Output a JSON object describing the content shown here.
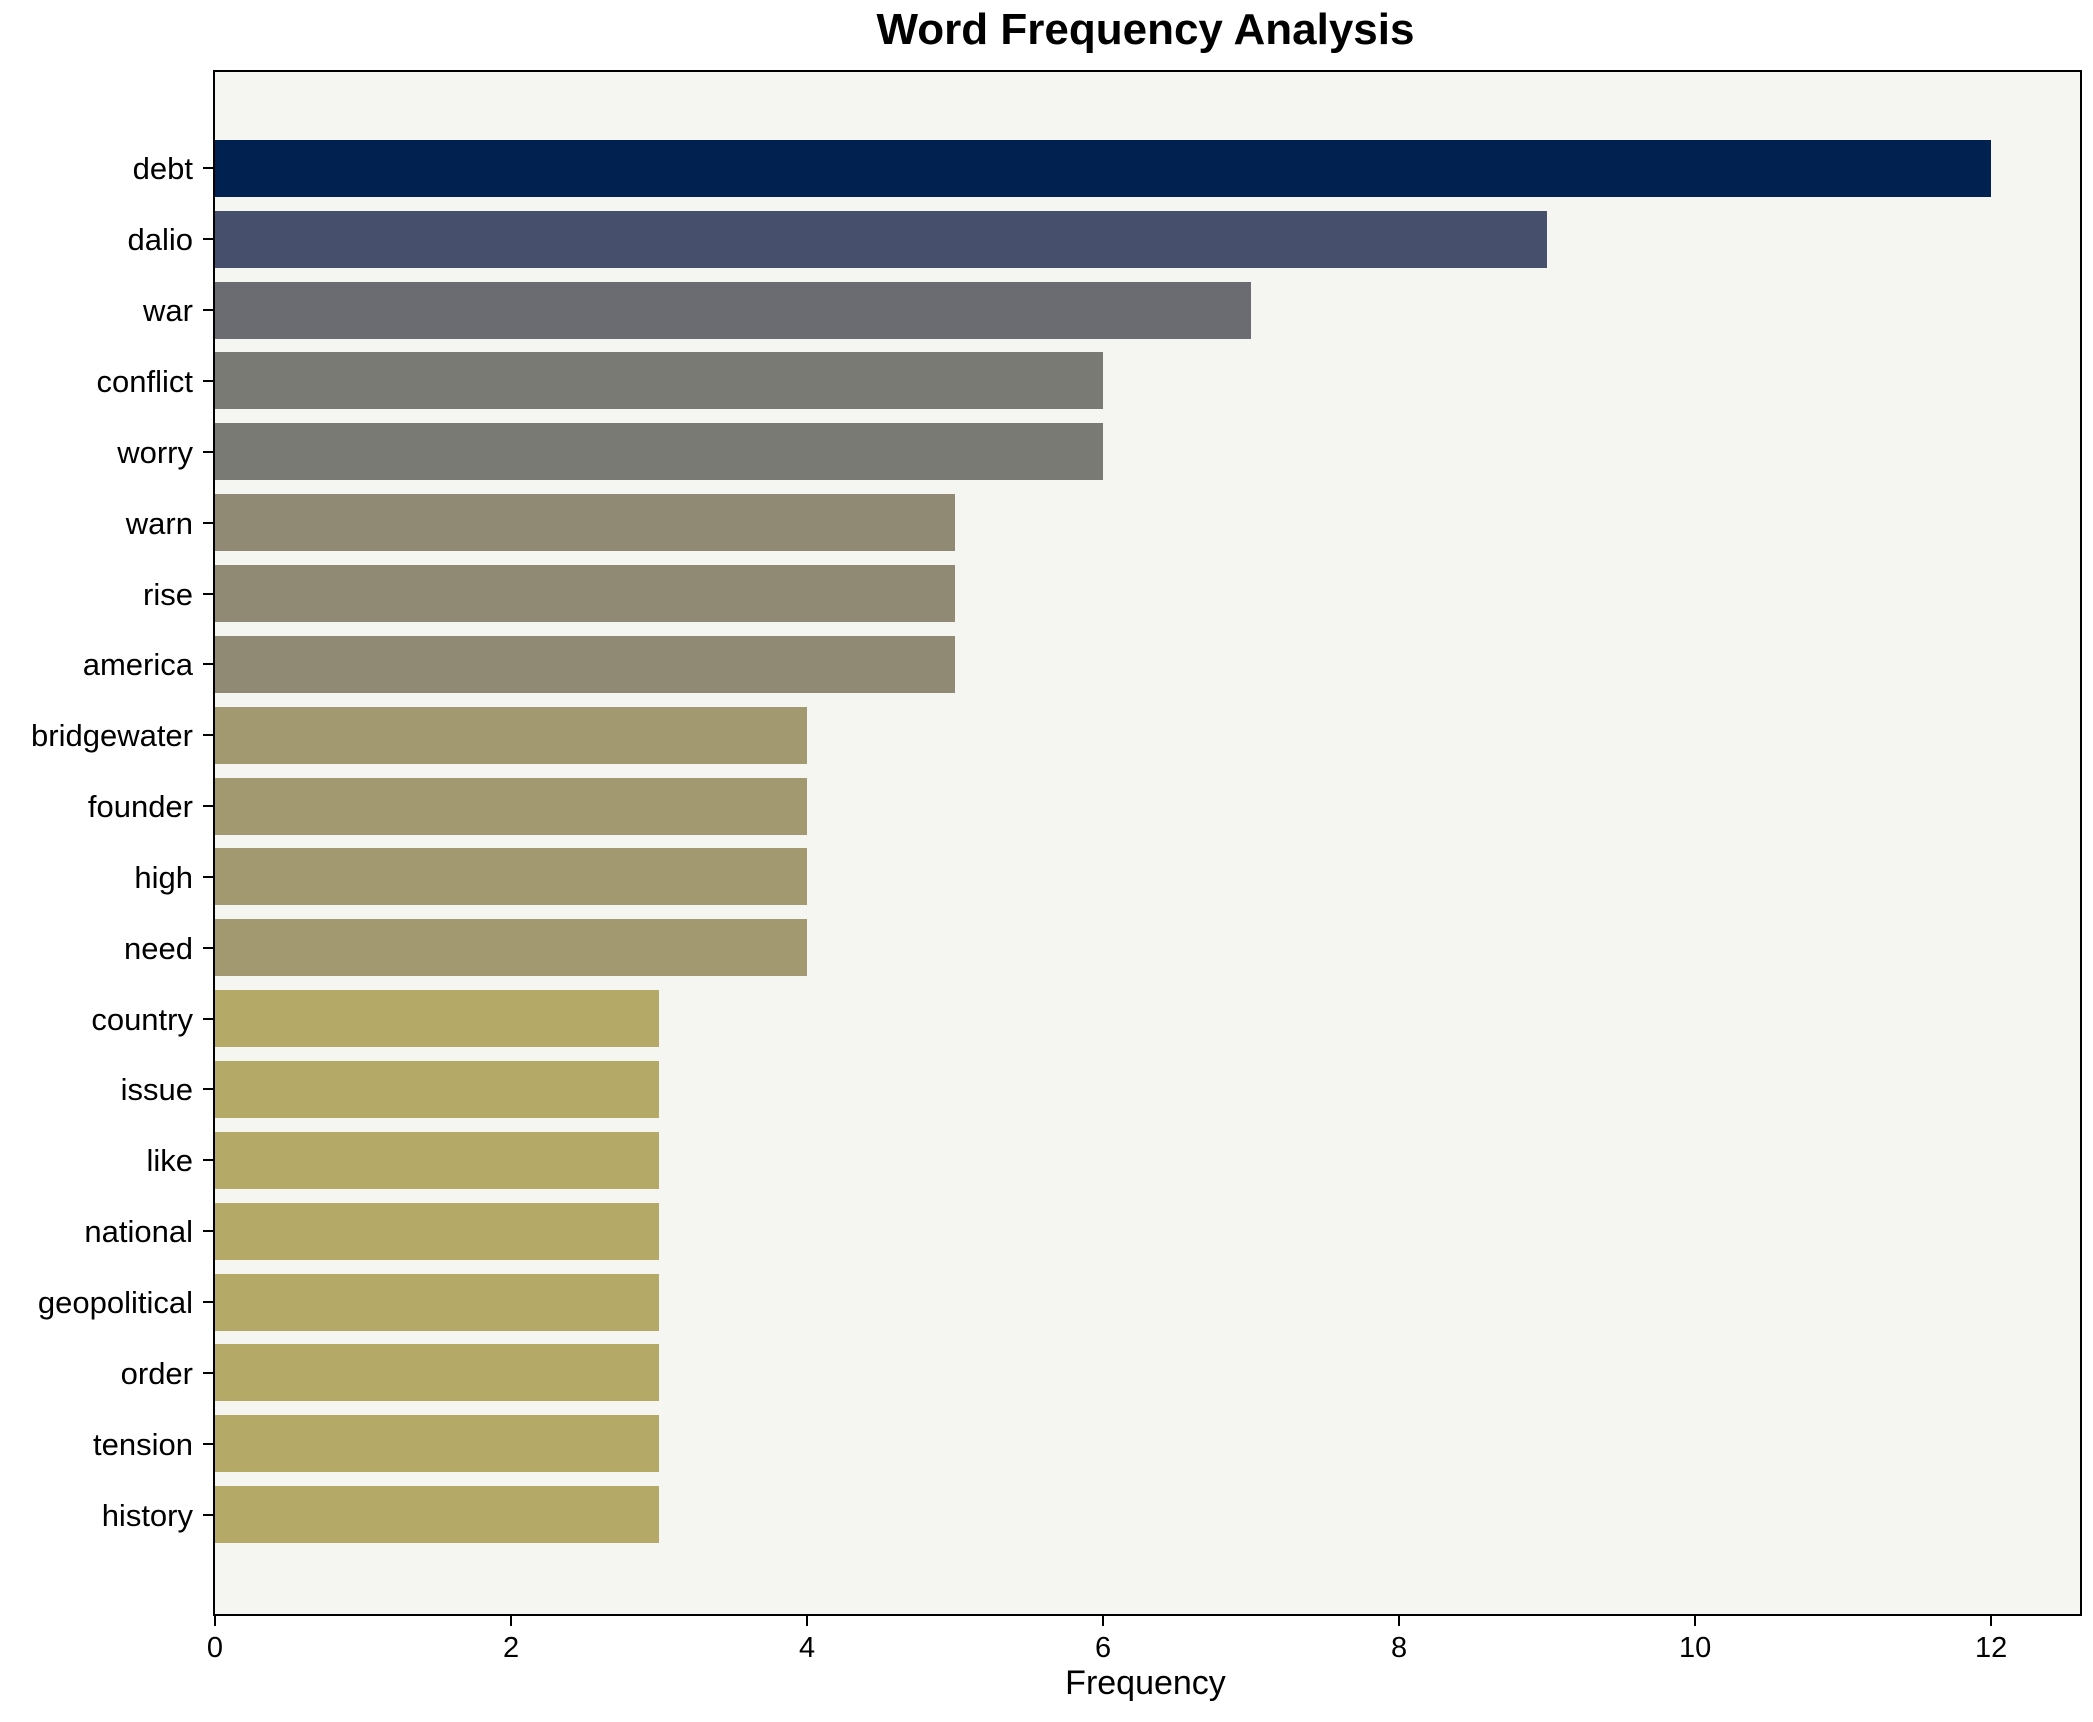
{
  "chart_data": {
    "type": "bar",
    "orientation": "horizontal",
    "title": "Word Frequency Analysis",
    "xlabel": "Frequency",
    "ylabel": "",
    "categories": [
      "debt",
      "dalio",
      "war",
      "conflict",
      "worry",
      "warn",
      "rise",
      "america",
      "bridgewater",
      "founder",
      "high",
      "need",
      "country",
      "issue",
      "like",
      "national",
      "geopolitical",
      "order",
      "tension",
      "history"
    ],
    "values": [
      12,
      9,
      7,
      6,
      6,
      5,
      5,
      5,
      4,
      4,
      4,
      4,
      3,
      3,
      3,
      3,
      3,
      3,
      3,
      3
    ],
    "bar_colors": [
      "#012250",
      "#46506c",
      "#6b6c71",
      "#7a7a75",
      "#7a7a75",
      "#908a75",
      "#908a75",
      "#908a75",
      "#a29970",
      "#a29970",
      "#a29970",
      "#a29970",
      "#b4a967",
      "#b4a967",
      "#b4a967",
      "#b4a967",
      "#b4a967",
      "#b4a967",
      "#b4a967",
      "#b4a967"
    ],
    "xlim": [
      0,
      12.6
    ],
    "xticks": [
      0,
      2,
      4,
      6,
      8,
      10,
      12
    ],
    "grid": false,
    "legend": false,
    "plot_background": "#f5f5f2",
    "spine_color": "#000000"
  }
}
